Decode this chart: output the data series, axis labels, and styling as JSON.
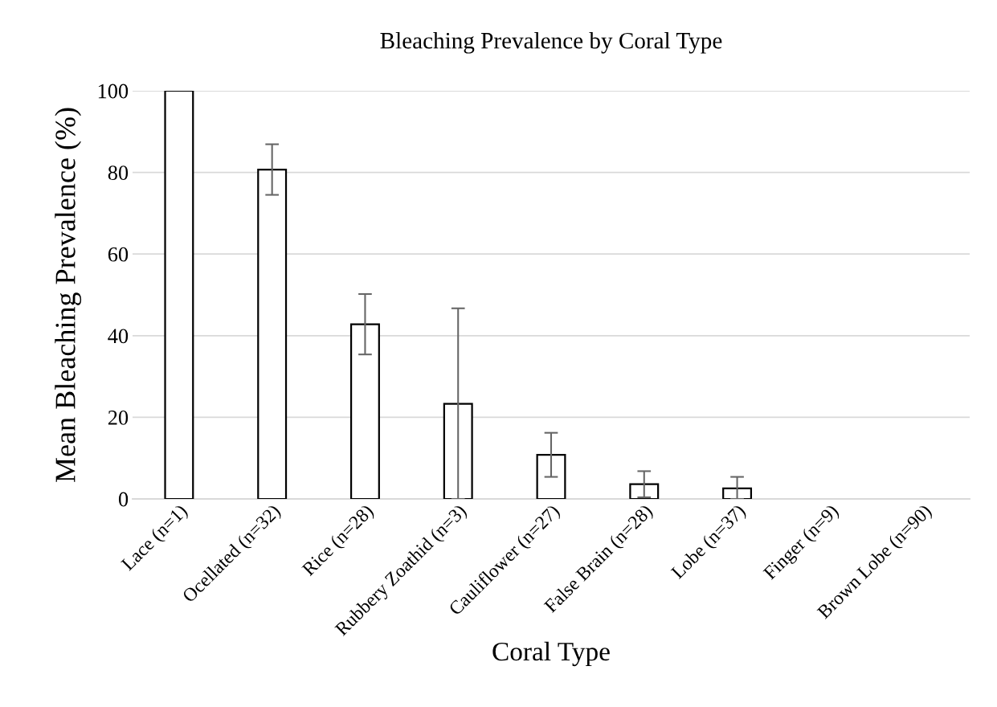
{
  "chart_data": {
    "type": "bar",
    "title": "Bleaching Prevalence by Coral Type",
    "xlabel": "Coral Type",
    "ylabel": "Mean Bleaching Prevalence (%)",
    "categories": [
      "Lace (n=1)",
      "Ocellated (n=32)",
      "Rice (n=28)",
      "Rubbery Zoathid (n=3)",
      "Cauliflower (n=27)",
      "False Brain (n=28)",
      "Lobe (n=37)",
      "Finger (n=9)",
      "Brown Lobe (n=90)"
    ],
    "values": [
      100,
      80.7,
      42.8,
      23.3,
      10.8,
      3.6,
      2.6,
      0,
      0
    ],
    "errors": [
      null,
      6.2,
      7.4,
      [
        23.3,
        23.4
      ],
      5.4,
      3.2,
      [
        2.6,
        2.8
      ],
      null,
      null
    ],
    "color": "#ffffff",
    "ylim": [
      0,
      100
    ],
    "yticks": [
      0,
      20,
      40,
      60,
      80,
      100
    ],
    "grid": "y",
    "legend": false
  }
}
